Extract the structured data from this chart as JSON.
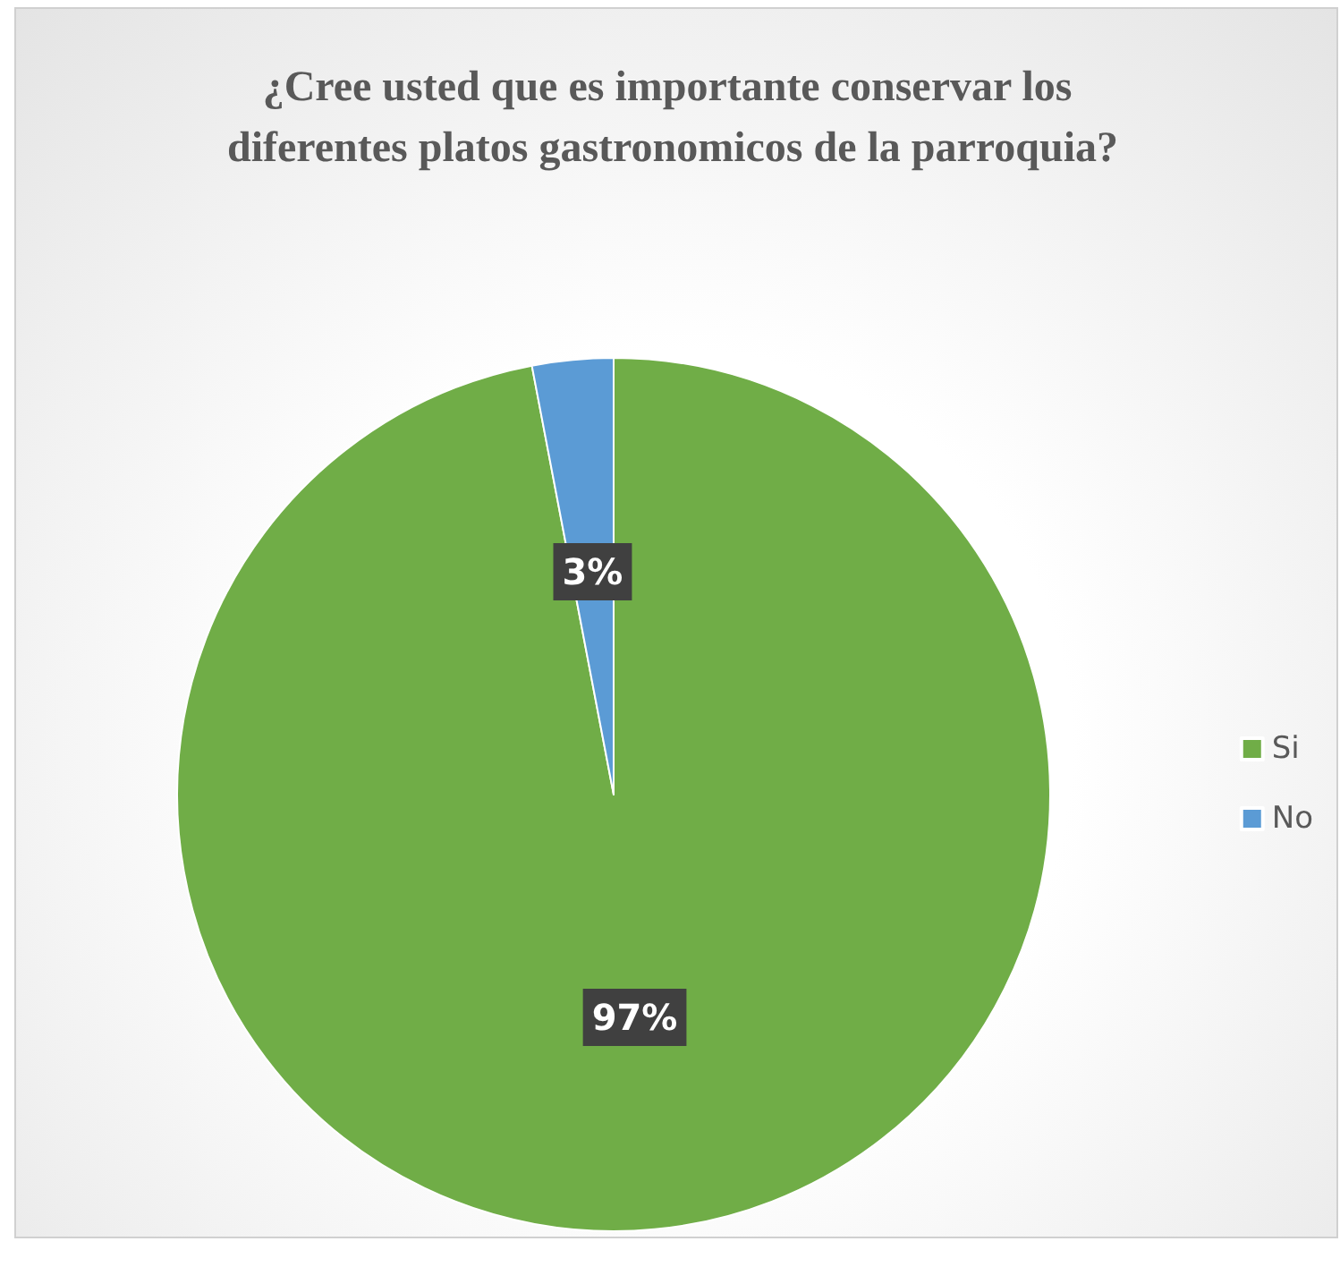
{
  "chart_data": {
    "type": "pie",
    "title": "¿Cree usted que es importante conservar los diferentes platos gastronomicos de la parroquia?",
    "categories": [
      "Si",
      "No"
    ],
    "values": [
      97,
      3
    ],
    "colors": [
      "#70ad47",
      "#5b9bd5"
    ],
    "value_labels": [
      "97%",
      "3%"
    ],
    "legend": "right"
  }
}
